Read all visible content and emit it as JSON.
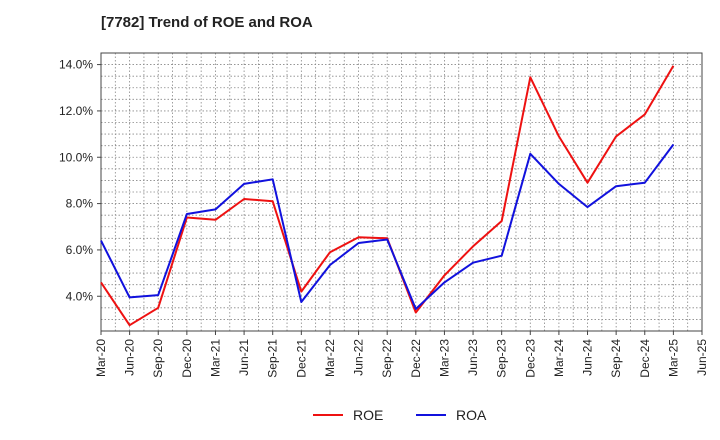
{
  "chart_data": {
    "type": "line",
    "title": "[7782]  Trend of ROE and ROA",
    "categories": [
      "Mar-20",
      "Jun-20",
      "Sep-20",
      "Dec-20",
      "Mar-21",
      "Jun-21",
      "Sep-21",
      "Dec-21",
      "Mar-22",
      "Jun-22",
      "Sep-22",
      "Dec-22",
      "Mar-23",
      "Jun-23",
      "Sep-23",
      "Dec-23",
      "Mar-24",
      "Jun-24",
      "Sep-24",
      "Dec-24",
      "Mar-25",
      "Jun-25"
    ],
    "yticks": [
      "4.0%",
      "6.0%",
      "8.0%",
      "10.0%",
      "12.0%",
      "14.0%"
    ],
    "ytick_values": [
      4,
      6,
      8,
      10,
      12,
      14
    ],
    "ylim": [
      2.5,
      14.5
    ],
    "grid": true,
    "legend_position": "bottom-center",
    "series": [
      {
        "name": "ROE",
        "color": "#ee1111",
        "values": [
          4.6,
          2.75,
          3.5,
          7.4,
          7.3,
          8.2,
          8.1,
          4.2,
          5.9,
          6.55,
          6.5,
          3.3,
          4.9,
          6.15,
          7.25,
          13.45,
          10.9,
          8.9,
          10.9,
          11.85,
          13.95,
          null
        ]
      },
      {
        "name": "ROA",
        "color": "#1111dd",
        "values": [
          6.4,
          3.95,
          4.05,
          7.55,
          7.75,
          8.85,
          9.05,
          3.75,
          5.35,
          6.3,
          6.45,
          3.45,
          4.6,
          5.45,
          5.75,
          10.15,
          8.85,
          7.85,
          8.75,
          8.9,
          10.55,
          null
        ]
      }
    ]
  }
}
